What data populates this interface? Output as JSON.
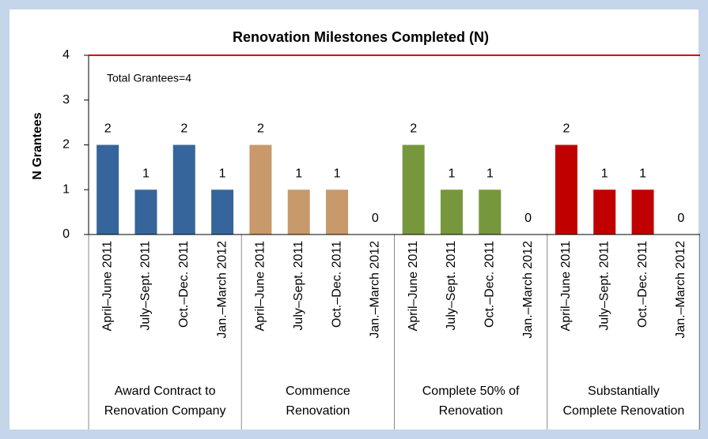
{
  "chart_data": {
    "type": "bar",
    "title": "Renovation Milestones Completed (N)",
    "y_label": "N Grantees",
    "ylim": [
      0,
      4
    ],
    "yticks": [
      0,
      1,
      2,
      3,
      4
    ],
    "reference_line": {
      "value": 4,
      "color": "#e00000",
      "label": "Total Grantees=4"
    },
    "groups": [
      {
        "name": [
          "Award Contract to",
          "Renovation Company"
        ],
        "color": "#35659a",
        "categories": [
          "April–June 2011",
          "July–Sept. 2011",
          "Oct.–Dec. 2011",
          "Jan.–March 2012"
        ],
        "values": [
          2,
          1,
          2,
          1
        ]
      },
      {
        "name": [
          "Commence",
          "Renovation"
        ],
        "color": "#c8996a",
        "categories": [
          "April–June 2011",
          "July–Sept. 2011",
          "Oct.–Dec. 2011",
          "Jan.–March 2012"
        ],
        "values": [
          2,
          1,
          1,
          0
        ]
      },
      {
        "name": [
          "Complete 50% of",
          "Renovation"
        ],
        "color": "#77973d",
        "categories": [
          "April–June 2011",
          "July–Sept. 2011",
          "Oct.–Dec. 2011",
          "Jan.–March 2012"
        ],
        "values": [
          2,
          1,
          1,
          0
        ]
      },
      {
        "name": [
          "Substantially",
          "Complete Renovation"
        ],
        "color": "#c00000",
        "categories": [
          "April–June 2011",
          "July–Sept. 2011",
          "Oct.–Dec. 2011",
          "Jan.–March 2012"
        ],
        "values": [
          2,
          1,
          1,
          0
        ]
      }
    ]
  }
}
